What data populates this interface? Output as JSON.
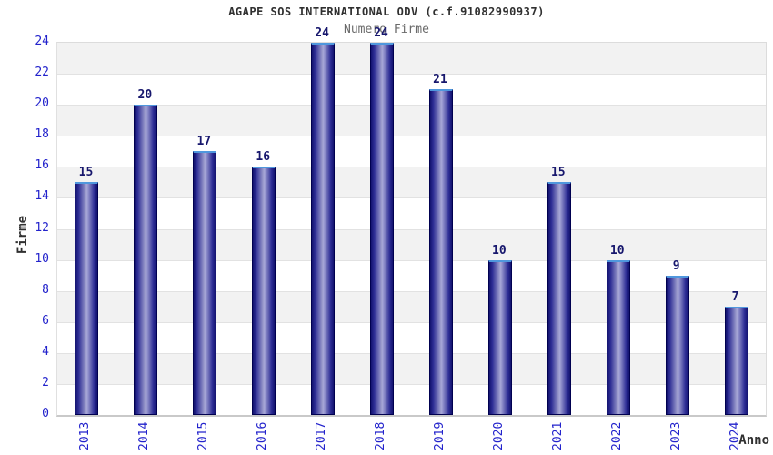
{
  "chart_data": {
    "type": "bar",
    "title": "AGAPE SOS INTERNATIONAL ODV (c.f.91082990937)",
    "subtitle": "Numero Firme",
    "categories": [
      "2013",
      "2014",
      "2015",
      "2016",
      "2017",
      "2018",
      "2019",
      "2020",
      "2021",
      "2022",
      "2023",
      "2024"
    ],
    "values": [
      15,
      20,
      17,
      16,
      24,
      24,
      21,
      10,
      15,
      10,
      9,
      7
    ],
    "xlabel": "Anno",
    "ylabel": "Firme",
    "ylim": [
      0,
      24
    ],
    "ytick_step": 2,
    "yticks": [
      0,
      2,
      4,
      6,
      8,
      10,
      12,
      14,
      16,
      18,
      20,
      22,
      24
    ],
    "grid": true,
    "legend": "none",
    "band_style": "alternating horizontal bands, gray on 22-24, 18-20, 14-16, 10-12, 6-8, 2-4"
  },
  "colors": {
    "background": "#ffffff",
    "band_gray": "#f2f2f2",
    "band_white": "#ffffff",
    "gridline": "#e2e2e2",
    "plot_border": "#dcdcdc",
    "axis_line": "#c9c9c9",
    "bar_edge_dark": "#13136f",
    "bar_center_light": "#a8a8d8",
    "bar_border": "#000050",
    "bar_top_highlight": "#4f97dd",
    "tick_label_blue": "#2323cc",
    "value_label_navy": "#17176d",
    "title_color": "#303030",
    "subtitle_color": "#6a6a6a"
  }
}
